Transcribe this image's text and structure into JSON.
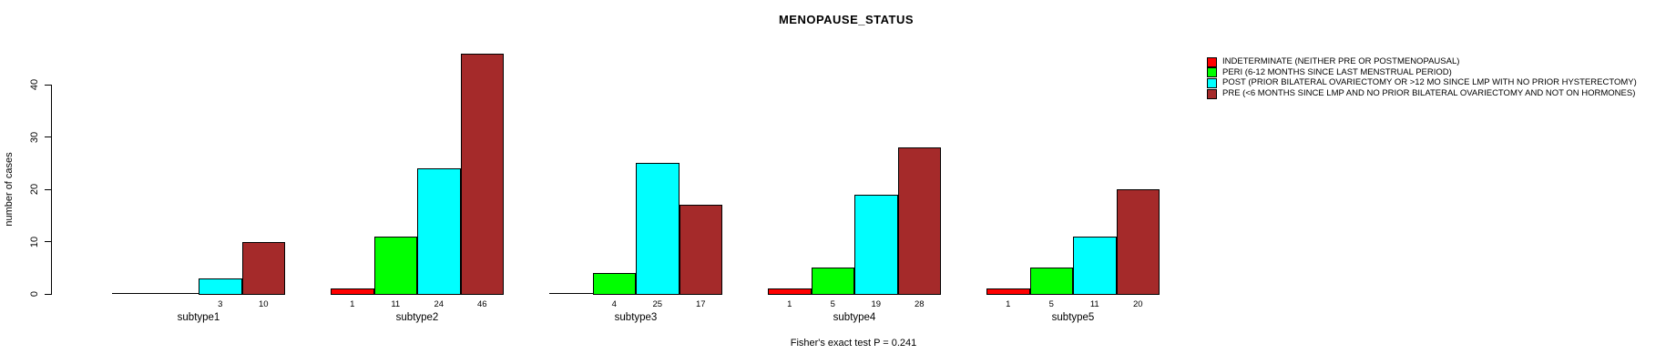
{
  "chart_data": {
    "type": "bar",
    "title": "MENOPAUSE_STATUS",
    "xlabel": "",
    "ylabel": "number of cases",
    "ylim": [
      0,
      46
    ],
    "yticks": [
      0,
      10,
      20,
      30,
      40
    ],
    "grid": false,
    "legend_position": "right",
    "categories": [
      "subtype1",
      "subtype2",
      "subtype3",
      "subtype4",
      "subtype5"
    ],
    "series": [
      {
        "name": "INDETERMINATE (NEITHER PRE OR POSTMENOPAUSAL)",
        "color": "#ff0000",
        "values": [
          0,
          1,
          0,
          1,
          1
        ]
      },
      {
        "name": "PERI (6-12 MONTHS SINCE LAST MENSTRUAL PERIOD)",
        "color": "#00ff00",
        "values": [
          0,
          11,
          4,
          5,
          5
        ]
      },
      {
        "name": "POST (PRIOR BILATERAL OVARIECTOMY OR >12 MO SINCE LMP WITH NO PRIOR HYSTERECTOMY)",
        "color": "#00ffff",
        "values": [
          3,
          24,
          25,
          19,
          11
        ]
      },
      {
        "name": "PRE (<6 MONTHS SINCE LMP AND NO PRIOR BILATERAL OVARIECTOMY AND NOT ON HORMONES)",
        "color": "#a52a2a",
        "values": [
          10,
          46,
          17,
          28,
          20
        ]
      }
    ],
    "bar_value_labels_shown_when": "value > 0",
    "annotation": "Fisher's exact test P = 0.241"
  }
}
